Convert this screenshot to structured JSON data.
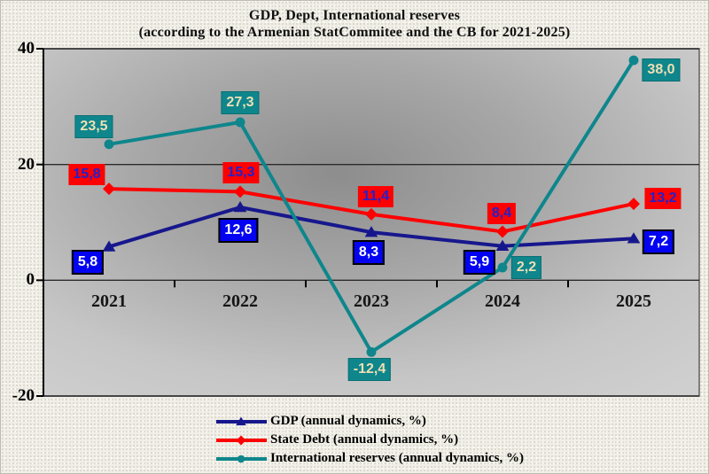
{
  "chart_data": {
    "type": "line",
    "title": "GDP, Dept, International reserves",
    "subtitle": "(according to the Armenian StatCommitee and the CB for 2021-2025)",
    "categories": [
      "2021",
      "2022",
      "2023",
      "2024",
      "2025"
    ],
    "series": [
      {
        "name": "GDP (annual dynamics, %)",
        "values": [
          5.8,
          12.6,
          8.3,
          5.9,
          7.2
        ],
        "labels": [
          "5,8",
          "12,6",
          "8,3",
          "5,9",
          "7,2"
        ],
        "color": "#17178d",
        "marker": "triangle",
        "label_bg": "#0303f2",
        "label_text": "#ffffff",
        "label_border": "2px solid #000000",
        "label_offsets": [
          [
            -24,
            18
          ],
          [
            -2,
            26
          ],
          [
            -3,
            23
          ],
          [
            -26,
            18
          ],
          [
            28,
            4
          ]
        ]
      },
      {
        "name": "State Debt (annual dynamics, %)",
        "values": [
          15.8,
          15.3,
          11.4,
          8.4,
          13.2
        ],
        "labels": [
          "15,8",
          "15,3",
          "11,4",
          "8,4",
          "13,2"
        ],
        "color": "#fe0000",
        "marker": "diamond",
        "label_bg": "#fe0000",
        "label_text": "#2222cb",
        "label_border": "none",
        "label_offsets": [
          [
            -25,
            -16
          ],
          [
            1,
            -21
          ],
          [
            5,
            -20
          ],
          [
            -1,
            -20
          ],
          [
            33,
            -6
          ]
        ]
      },
      {
        "name": "International reserves (annual dynamics, %)",
        "values": [
          23.5,
          27.3,
          -12.4,
          2.2,
          38.0
        ],
        "labels": [
          "23,5",
          "27,3",
          "-12,4",
          "2,2",
          "38,0"
        ],
        "color": "#0e868c",
        "marker": "circle",
        "label_bg": "#0e868c",
        "label_text": "#efdfb3",
        "label_border": "1px solid #0a6f74",
        "label_offsets": [
          [
            -17,
            -20
          ],
          [
            0,
            -22
          ],
          [
            -2,
            20
          ],
          [
            27,
            0
          ],
          [
            31,
            11
          ]
        ]
      }
    ],
    "xlabel": "",
    "ylabel": "",
    "ylim": [
      -20,
      40
    ],
    "yticks": [
      40,
      20,
      0,
      -20
    ],
    "grid": true,
    "legend_position": "bottom-center"
  }
}
